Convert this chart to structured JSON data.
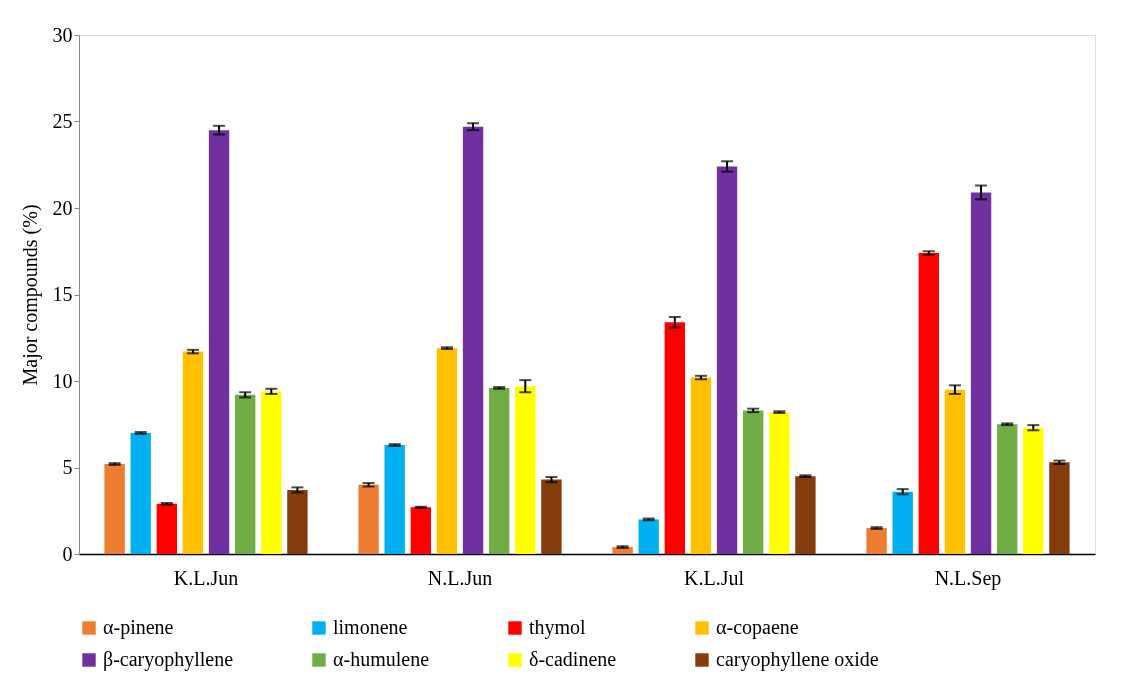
{
  "chart_data": {
    "type": "bar",
    "ylabel": "Major compounds (%)",
    "categories": [
      "K.L.Jun",
      "N.L.Jun",
      "K.L.Jul",
      "N.L.Sep"
    ],
    "series": [
      {
        "name": "α-pinene",
        "color": "#ed7d31",
        "values": [
          5.2,
          4.0,
          0.4,
          1.5
        ],
        "errors": [
          0.05,
          0.1,
          0.05,
          0.05
        ]
      },
      {
        "name": "limonene",
        "color": "#00b0f0",
        "values": [
          7.0,
          6.3,
          2.0,
          3.6
        ],
        "errors": [
          0.05,
          0.05,
          0.05,
          0.15
        ]
      },
      {
        "name": "thymol",
        "color": "#ff0000",
        "values": [
          2.9,
          2.7,
          13.4,
          17.4
        ],
        "errors": [
          0.05,
          0.03,
          0.3,
          0.1
        ]
      },
      {
        "name": "α-copaene",
        "color": "#ffc000",
        "values": [
          11.7,
          11.9,
          10.2,
          9.5
        ],
        "errors": [
          0.1,
          0.05,
          0.1,
          0.25
        ]
      },
      {
        "name": "β-caryophyllene",
        "color": "#7030a0",
        "values": [
          24.5,
          24.7,
          22.4,
          20.9
        ],
        "errors": [
          0.25,
          0.2,
          0.3,
          0.4
        ]
      },
      {
        "name": "α-humulene",
        "color": "#70ad47",
        "values": [
          9.2,
          9.6,
          8.3,
          7.5
        ],
        "errors": [
          0.15,
          0.05,
          0.1,
          0.05
        ]
      },
      {
        "name": "δ-cadinene",
        "color": "#ffff00",
        "values": [
          9.4,
          9.7,
          8.2,
          7.3
        ],
        "errors": [
          0.15,
          0.35,
          0.05,
          0.15
        ]
      },
      {
        "name": "caryophyllene oxide",
        "color": "#843c0c",
        "values": [
          3.7,
          4.3,
          4.5,
          5.3
        ],
        "errors": [
          0.15,
          0.15,
          0.05,
          0.1
        ]
      }
    ],
    "ylim": [
      0,
      30
    ],
    "yticks": [
      0,
      5,
      10,
      15,
      20,
      25,
      30
    ],
    "grid": false,
    "legend": "bottom"
  }
}
